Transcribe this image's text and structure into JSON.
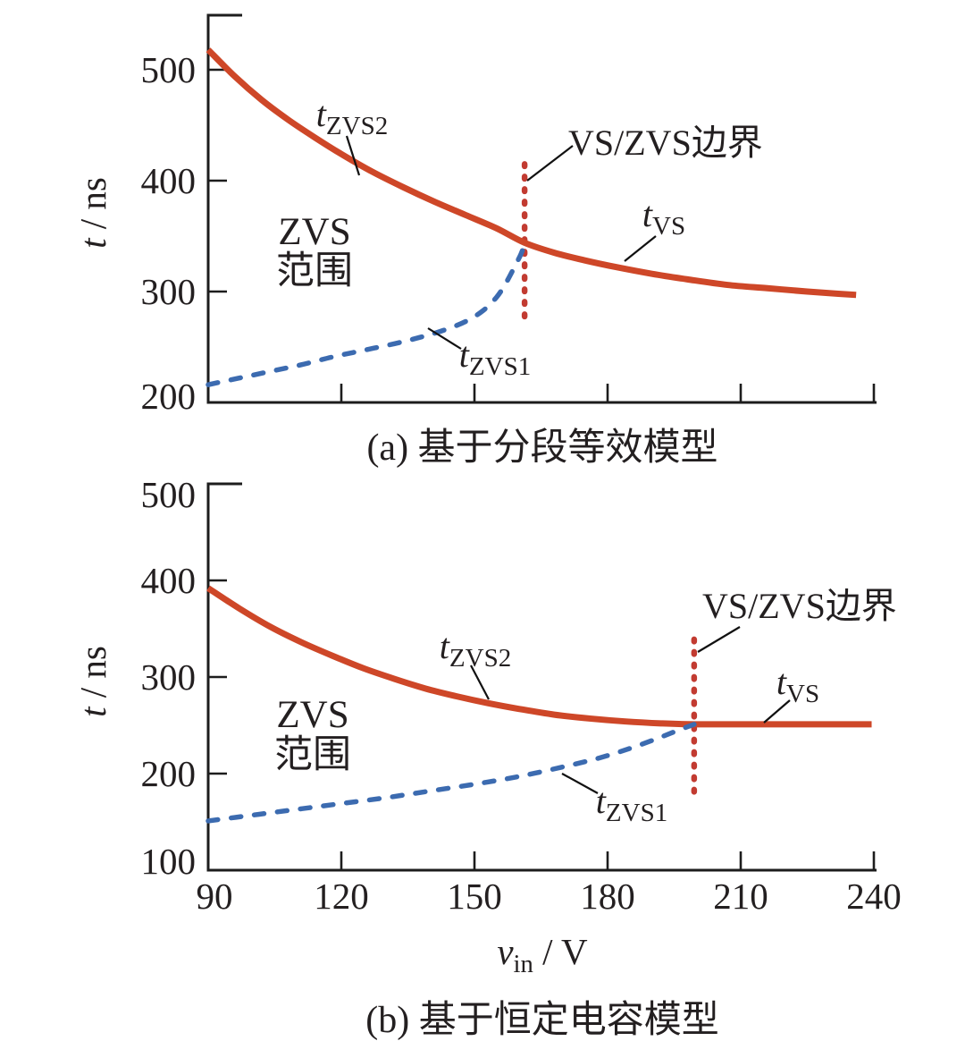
{
  "figure": {
    "x_axis": {
      "symbol": "v",
      "symbol_sub": "in",
      "unit": " / V",
      "tick_labels": [
        "90",
        "120",
        "150",
        "180",
        "210",
        "240"
      ]
    },
    "y_axis": {
      "symbol": "t",
      "unit": " / ns"
    }
  },
  "chart_data": [
    {
      "id": "a",
      "type": "line",
      "caption": "(a) 基于分段等效模型",
      "xlabel": "v_in / V",
      "ylabel": "t / ns",
      "xlim": [
        90,
        240
      ],
      "ylim": [
        200,
        550
      ],
      "x_ticks": [
        120,
        150,
        180,
        210,
        240
      ],
      "y_ticks": [
        500,
        400,
        300,
        200
      ],
      "grid": false,
      "legend_position": "none",
      "zone_label": [
        "ZVS",
        "范围"
      ],
      "boundary": {
        "label": "VS/ZVS边界",
        "v": 161.3,
        "t_range": [
          275,
          415
        ]
      },
      "annotations": [
        {
          "id": "tzvs2",
          "main": "t",
          "sub": "ZVS2"
        },
        {
          "id": "tvs",
          "main": "t",
          "sub": "VS"
        },
        {
          "id": "tzvs1",
          "main": "t",
          "sub": "ZVS1"
        }
      ],
      "series": [
        {
          "name": "t_ZVS2 -> t_VS",
          "color": "#CE4728",
          "style": "solid",
          "points": [
            [
              90,
              518
            ],
            [
              96,
              494
            ],
            [
              102,
              473
            ],
            [
              108,
              455
            ],
            [
              114,
              439
            ],
            [
              120,
              424
            ],
            [
              127,
              408
            ],
            [
              134,
              394
            ],
            [
              141,
              381
            ],
            [
              148,
              369
            ],
            [
              155,
              357
            ],
            [
              161.3,
              344
            ],
            [
              168,
              335
            ],
            [
              175,
              328
            ],
            [
              182,
              322
            ],
            [
              190,
              316
            ],
            [
              198,
              311
            ],
            [
              207,
              306
            ],
            [
              216,
              303
            ],
            [
              225,
              300
            ],
            [
              232,
              298
            ],
            [
              236,
              297
            ]
          ]
        },
        {
          "name": "t_ZVS1",
          "color": "#3C6BB0",
          "style": "dashed",
          "points": [
            [
              90,
              216
            ],
            [
              97,
              222
            ],
            [
              104,
              228
            ],
            [
              111,
              234
            ],
            [
              118,
              241
            ],
            [
              125,
              247
            ],
            [
              132,
              253
            ],
            [
              138,
              259
            ],
            [
              143,
              265
            ],
            [
              148,
              273
            ],
            [
              152,
              283
            ],
            [
              155,
              295
            ],
            [
              157,
              307
            ],
            [
              159,
              322
            ],
            [
              160.5,
              334
            ],
            [
              161.3,
              343
            ]
          ]
        }
      ]
    },
    {
      "id": "b",
      "type": "line",
      "caption": "(b) 基于恒定电容模型",
      "xlabel": "v_in / V",
      "ylabel": "t / ns",
      "xlim": [
        90,
        240
      ],
      "ylim": [
        100,
        500
      ],
      "x_ticks": [
        120,
        150,
        180,
        210,
        240
      ],
      "y_ticks": [
        500,
        400,
        300,
        200,
        100
      ],
      "grid": false,
      "legend_position": "none",
      "zone_label": [
        "ZVS",
        "范围"
      ],
      "boundary": {
        "label": "VS/ZVS边界",
        "v": 199.5,
        "t_range": [
          180,
          339
        ]
      },
      "annotations": [
        {
          "id": "tzvs2",
          "main": "t",
          "sub": "ZVS2"
        },
        {
          "id": "tvs",
          "main": "t",
          "sub": "VS"
        },
        {
          "id": "tzvs1",
          "main": "t",
          "sub": "ZVS1"
        }
      ],
      "series": [
        {
          "name": "t_ZVS2 -> t_VS",
          "color": "#CE4728",
          "style": "solid",
          "points": [
            [
              90,
              392
            ],
            [
              97,
              371
            ],
            [
              104,
              352
            ],
            [
              111,
              336
            ],
            [
              118,
              322
            ],
            [
              125,
              309
            ],
            [
              132,
              298
            ],
            [
              139,
              288
            ],
            [
              146,
              280
            ],
            [
              153,
              273
            ],
            [
              160,
              267
            ],
            [
              168,
              261
            ],
            [
              176,
              257
            ],
            [
              184,
              254
            ],
            [
              192,
              252
            ],
            [
              199.5,
              251
            ],
            [
              212,
              251
            ],
            [
              226,
              251
            ],
            [
              239.5,
              251
            ]
          ]
        },
        {
          "name": "t_ZVS1",
          "color": "#3C6BB0",
          "style": "dashed",
          "points": [
            [
              90,
              151
            ],
            [
              100,
              157
            ],
            [
              110,
              163
            ],
            [
              120,
              169
            ],
            [
              130,
              175
            ],
            [
              140,
              182
            ],
            [
              150,
              189
            ],
            [
              160,
              197
            ],
            [
              170,
              207
            ],
            [
              178,
              216
            ],
            [
              185,
              226
            ],
            [
              191,
              236
            ],
            [
              196,
              245
            ],
            [
              199.5,
              251
            ]
          ]
        }
      ]
    }
  ],
  "colors": {
    "curve_red": "#CE4728",
    "curve_blue": "#3C6BB0",
    "boundary_red": "#C23B31",
    "axis": "#1d1d1d",
    "text": "#231f20"
  }
}
